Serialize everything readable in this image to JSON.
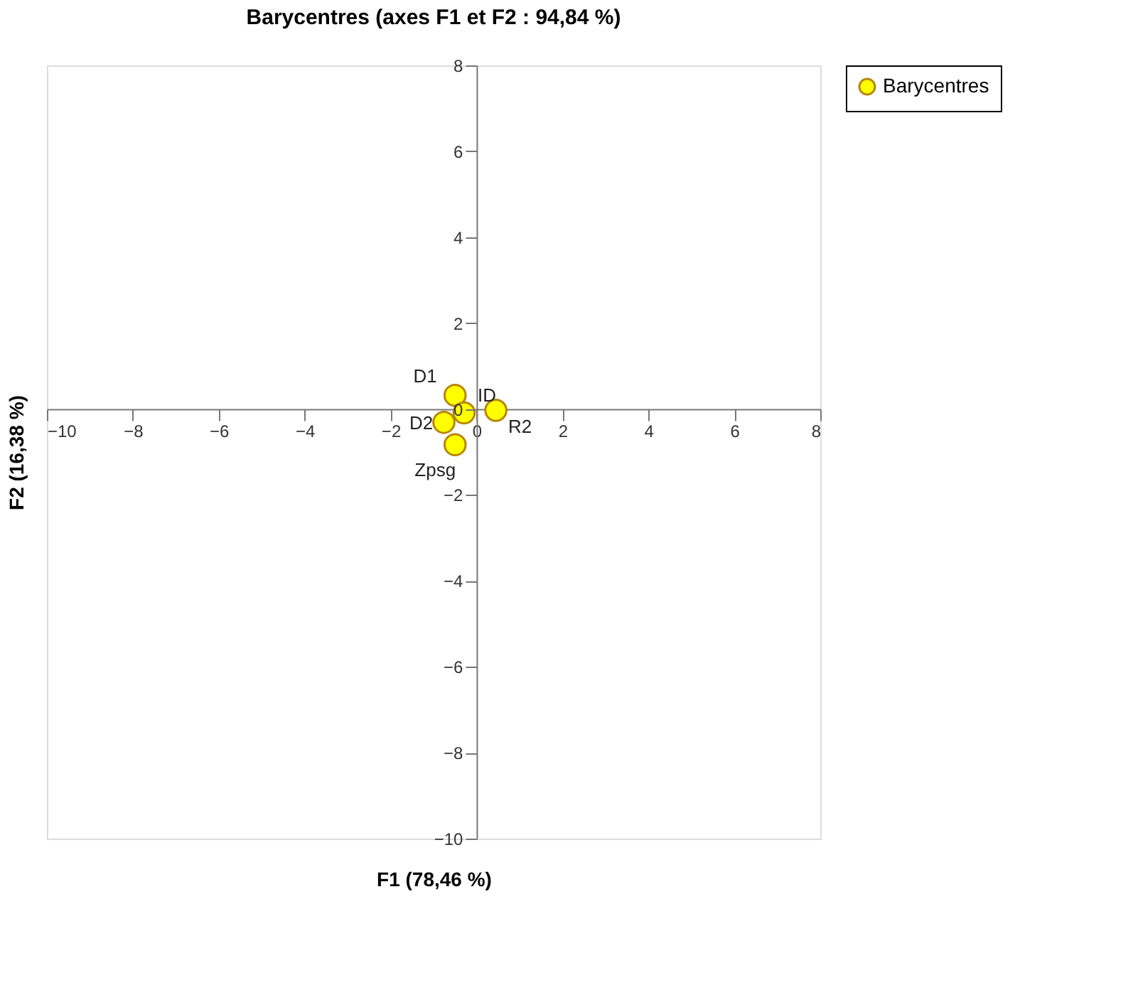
{
  "chart_data": {
    "type": "scatter",
    "title": "Barycentres (axes F1 et F2 : 94,84 %)",
    "xlabel": "F1 (78,46 %)",
    "ylabel": "F2 (16,38 %)",
    "series": [
      {
        "name": "Barycentres",
        "color": "#ffff00",
        "x": [
          -0.5,
          -0.29,
          0.45,
          -0.76,
          -0.5
        ],
        "values": [
          0.32,
          -0.09,
          -0.03,
          -0.31,
          -0.83
        ]
      }
    ],
    "annotations": [
      {
        "text": "D1",
        "x": -0.5,
        "y": 0.32
      },
      {
        "text": "ID",
        "x": -0.29,
        "y": -0.09
      },
      {
        "text": "R2",
        "x": 0.45,
        "y": -0.03
      },
      {
        "text": "D2",
        "x": -0.76,
        "y": -0.31
      },
      {
        "text": "Zpsg",
        "x": -0.5,
        "y": -0.83
      }
    ],
    "xlim": [
      -10,
      8
    ],
    "ylim": [
      -10,
      8
    ],
    "xticks": [
      -10,
      -8,
      -6,
      -4,
      -2,
      0,
      2,
      4,
      6,
      8
    ],
    "yticks": [
      -10,
      -8,
      -6,
      -4,
      -2,
      0,
      2,
      4,
      6,
      8
    ],
    "grid": false,
    "legend": "right",
    "marker": "circle"
  }
}
